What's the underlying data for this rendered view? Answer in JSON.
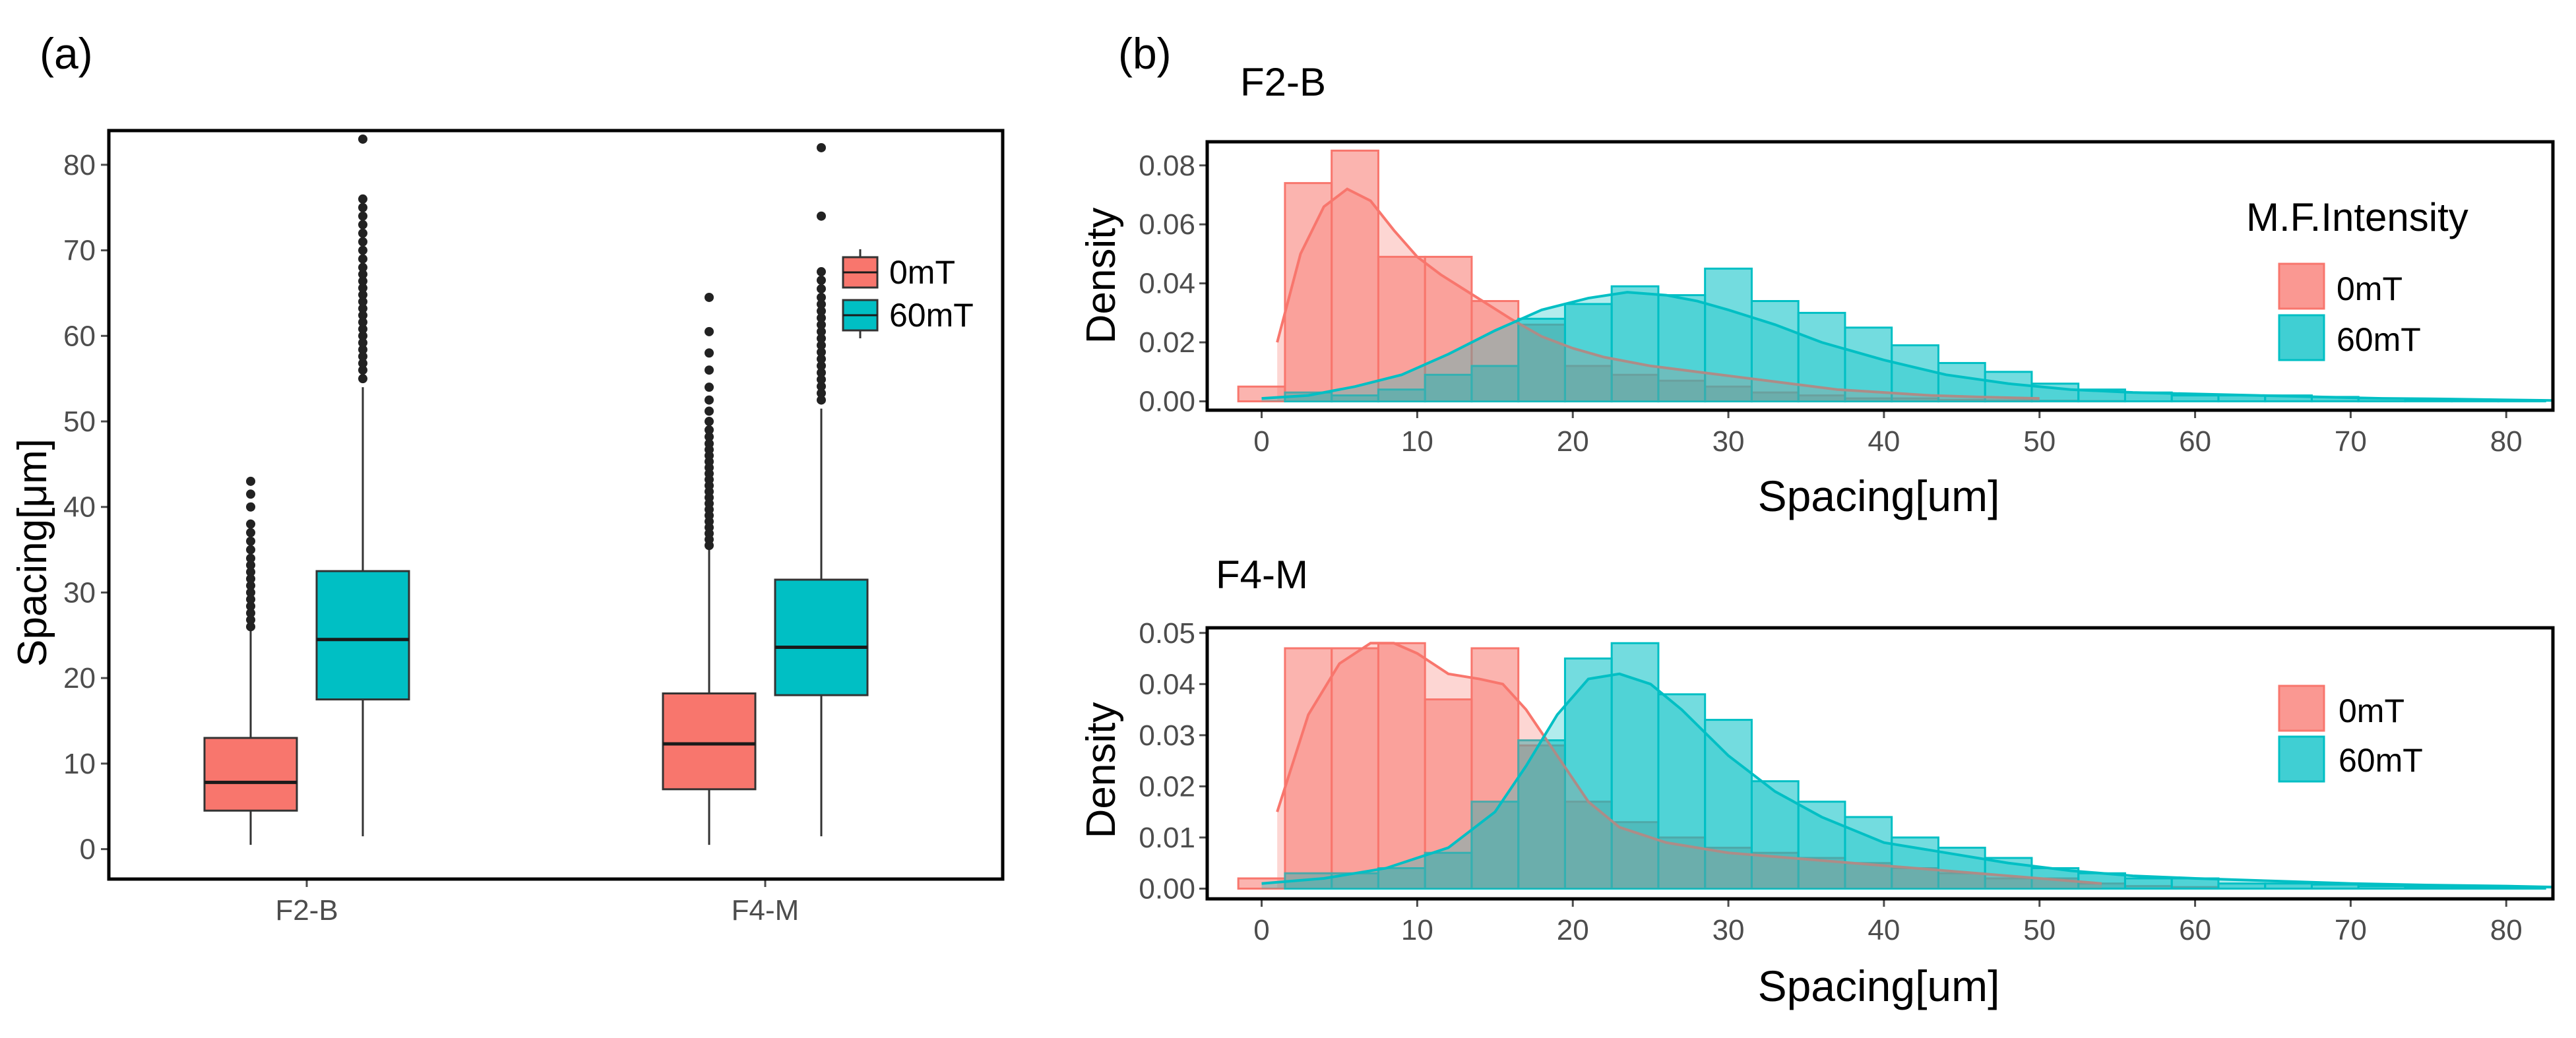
{
  "colors": {
    "c0mT": "#F8766D",
    "c60mT": "#00BFC4",
    "frame": "#000000",
    "tick": "#4d4d4d"
  },
  "chart_data": [
    {
      "type": "box",
      "panel_label": "(a)",
      "ylabel": "Spacing[μm]",
      "xlabel": "",
      "categories": [
        "F2-B",
        "F4-M"
      ],
      "ylim": [
        -3.5,
        84
      ],
      "yticks": [
        0,
        10,
        20,
        30,
        40,
        50,
        60,
        70,
        80
      ],
      "legend": {
        "position": "top-right",
        "title": "",
        "entries": [
          "0mT",
          "60mT"
        ]
      },
      "grid": false,
      "series": [
        {
          "name": "0mT",
          "color": "#F8766D",
          "boxes": [
            {
              "category": "F2-B",
              "min": 0.5,
              "q1": 4.5,
              "median": 7.8,
              "q3": 13.0,
              "max": 25.5,
              "outliers": [
                26,
                26.8,
                27.6,
                28.4,
                29.2,
                30,
                30.8,
                31.6,
                32.4,
                33.2,
                34,
                35,
                36,
                37,
                38,
                40,
                41.5,
                43
              ]
            },
            {
              "category": "F4-M",
              "min": 0.5,
              "q1": 7.0,
              "median": 12.3,
              "q3": 18.2,
              "max": 35.0,
              "outliers": [
                35.5,
                36.2,
                36.9,
                37.6,
                38.3,
                39,
                39.7,
                40.4,
                41.1,
                41.8,
                42.5,
                43.2,
                43.9,
                44.6,
                45.3,
                46,
                46.7,
                47.4,
                48.2,
                49,
                50,
                51.2,
                52.5,
                54,
                56,
                58,
                60.5,
                64.5
              ]
            }
          ]
        },
        {
          "name": "60mT",
          "color": "#00BFC4",
          "boxes": [
            {
              "category": "F2-B",
              "min": 1.5,
              "q1": 17.5,
              "median": 24.5,
              "q3": 32.5,
              "max": 54.0,
              "outliers": [
                55,
                56,
                56.8,
                57.6,
                58.4,
                59.2,
                60,
                60.8,
                61.6,
                62.4,
                63.2,
                64,
                64.8,
                65.6,
                66.4,
                67.2,
                68,
                69,
                70,
                71,
                72,
                73,
                74,
                75,
                76,
                83
              ]
            },
            {
              "category": "F4-M",
              "min": 1.5,
              "q1": 18.0,
              "median": 23.6,
              "q3": 31.5,
              "max": 51.5,
              "outliers": [
                52.5,
                53.3,
                54.1,
                54.9,
                55.7,
                56.5,
                57.3,
                58.1,
                58.9,
                59.7,
                60.5,
                61.3,
                62.1,
                62.9,
                63.7,
                64.5,
                65.5,
                66.5,
                67.5,
                74,
                82
              ]
            }
          ]
        }
      ]
    },
    {
      "type": "histogram+density",
      "panel_label": "(b)",
      "title": "F2-B",
      "xlabel": "Spacing[um]",
      "ylabel": "Density",
      "xlim": [
        -3.5,
        83
      ],
      "ylim": [
        -0.003,
        0.088
      ],
      "xticks": [
        0,
        10,
        20,
        30,
        40,
        50,
        60,
        70,
        80
      ],
      "yticks": [
        0.0,
        0.02,
        0.04,
        0.06,
        0.08
      ],
      "ytick_labels": [
        "0.00",
        "0.02",
        "0.04",
        "0.06",
        "0.08"
      ],
      "grid": false,
      "legend": {
        "position": "right",
        "title": "M.F.Intensity",
        "entries": [
          "0mT",
          "60mT"
        ]
      },
      "bin_edges": [
        -1.5,
        1.5,
        4.5,
        7.5,
        10.5,
        13.5,
        16.5,
        19.5,
        22.5,
        25.5,
        28.5,
        31.5,
        34.5,
        37.5,
        40.5,
        43.5,
        46.5,
        49.5,
        52.5,
        55.5,
        58.5,
        61.5,
        64.5,
        67.5,
        70.5,
        73.5,
        76.5,
        79.5,
        82.5
      ],
      "series": [
        {
          "name": "0mT",
          "color": "#F8766D",
          "hist": [
            0.005,
            0.074,
            0.085,
            0.049,
            0.049,
            0.034,
            0.026,
            0.012,
            0.009,
            0.007,
            0.005,
            0.003,
            0.002,
            0.001,
            0.001,
            0.0005,
            0.0003,
            0.0002,
            0.0001,
            0,
            0,
            0,
            0,
            0,
            0,
            0,
            0,
            0
          ],
          "density_x": [
            1,
            2.5,
            4,
            5.5,
            7,
            8.5,
            10,
            11.5,
            13,
            14.5,
            16,
            18,
            20,
            22,
            25,
            28,
            31,
            34,
            37,
            40,
            43,
            46,
            50
          ],
          "density_y": [
            0.02,
            0.05,
            0.066,
            0.072,
            0.068,
            0.058,
            0.049,
            0.043,
            0.038,
            0.033,
            0.028,
            0.022,
            0.018,
            0.015,
            0.012,
            0.01,
            0.008,
            0.006,
            0.004,
            0.003,
            0.002,
            0.0015,
            0.001
          ]
        },
        {
          "name": "60mT",
          "color": "#00BFC4",
          "hist": [
            0,
            0.003,
            0.002,
            0.004,
            0.009,
            0.012,
            0.028,
            0.033,
            0.039,
            0.036,
            0.045,
            0.034,
            0.03,
            0.025,
            0.019,
            0.013,
            0.01,
            0.006,
            0.004,
            0.003,
            0.002,
            0.002,
            0.002,
            0.0015,
            0.001,
            0.0005,
            0.0005,
            0.0003
          ],
          "density_x": [
            0,
            3,
            6,
            9,
            12,
            15,
            18,
            21,
            23.5,
            26,
            28,
            30,
            33,
            36,
            40,
            44,
            48,
            52,
            56,
            60,
            64,
            68,
            72,
            76,
            80,
            83
          ],
          "density_y": [
            0.001,
            0.002,
            0.005,
            0.009,
            0.016,
            0.024,
            0.031,
            0.035,
            0.037,
            0.036,
            0.034,
            0.031,
            0.026,
            0.02,
            0.014,
            0.009,
            0.006,
            0.004,
            0.003,
            0.0025,
            0.002,
            0.0015,
            0.001,
            0.0008,
            0.0005,
            0.0003
          ]
        }
      ]
    },
    {
      "type": "histogram+density",
      "title": "F4-M",
      "xlabel": "Spacing[um]",
      "ylabel": "Density",
      "xlim": [
        -3.5,
        83
      ],
      "ylim": [
        -0.002,
        0.051
      ],
      "xticks": [
        0,
        10,
        20,
        30,
        40,
        50,
        60,
        70,
        80
      ],
      "yticks": [
        0.0,
        0.01,
        0.02,
        0.03,
        0.04,
        0.05
      ],
      "ytick_labels": [
        "0.00",
        "0.01",
        "0.02",
        "0.03",
        "0.04",
        "0.05"
      ],
      "grid": false,
      "legend": {
        "position": "right",
        "title": "",
        "entries": [
          "0mT",
          "60mT"
        ]
      },
      "bin_edges": [
        -1.5,
        1.5,
        4.5,
        7.5,
        10.5,
        13.5,
        16.5,
        19.5,
        22.5,
        25.5,
        28.5,
        31.5,
        34.5,
        37.5,
        40.5,
        43.5,
        46.5,
        49.5,
        52.5,
        55.5,
        58.5,
        61.5,
        64.5,
        67.5,
        70.5,
        73.5,
        76.5,
        79.5,
        82.5
      ],
      "series": [
        {
          "name": "0mT",
          "color": "#F8766D",
          "hist": [
            0.002,
            0.047,
            0.047,
            0.048,
            0.037,
            0.047,
            0.028,
            0.017,
            0.013,
            0.01,
            0.008,
            0.007,
            0.006,
            0.005,
            0.004,
            0.003,
            0.002,
            0.002,
            0.001,
            0.0005,
            0.0003,
            0,
            0,
            0,
            0,
            0,
            0,
            0
          ],
          "density_x": [
            1,
            3,
            5,
            7,
            8.5,
            10,
            12,
            14,
            15.5,
            17,
            19,
            21,
            23,
            26,
            30,
            34,
            38,
            42,
            46,
            50,
            54
          ],
          "density_y": [
            0.015,
            0.034,
            0.044,
            0.048,
            0.048,
            0.046,
            0.042,
            0.041,
            0.04,
            0.035,
            0.026,
            0.017,
            0.012,
            0.009,
            0.007,
            0.006,
            0.005,
            0.004,
            0.003,
            0.002,
            0.001
          ]
        },
        {
          "name": "60mT",
          "color": "#00BFC4",
          "hist": [
            0,
            0.003,
            0.003,
            0.004,
            0.007,
            0.017,
            0.029,
            0.045,
            0.048,
            0.038,
            0.033,
            0.021,
            0.017,
            0.014,
            0.01,
            0.008,
            0.006,
            0.004,
            0.003,
            0.002,
            0.002,
            0.001,
            0.001,
            0.0008,
            0.0005,
            0.0004,
            0.0003,
            0.0002
          ],
          "density_x": [
            0,
            4,
            8,
            12,
            15,
            17,
            19,
            21,
            23,
            25,
            27,
            30,
            33,
            36,
            40,
            44,
            48,
            52,
            56,
            60,
            65,
            70,
            75,
            80,
            83
          ],
          "density_y": [
            0.001,
            0.002,
            0.004,
            0.008,
            0.015,
            0.024,
            0.034,
            0.041,
            0.042,
            0.04,
            0.035,
            0.026,
            0.019,
            0.014,
            0.009,
            0.007,
            0.005,
            0.0035,
            0.0025,
            0.002,
            0.0015,
            0.001,
            0.0007,
            0.0005,
            0.0003
          ]
        }
      ]
    }
  ]
}
